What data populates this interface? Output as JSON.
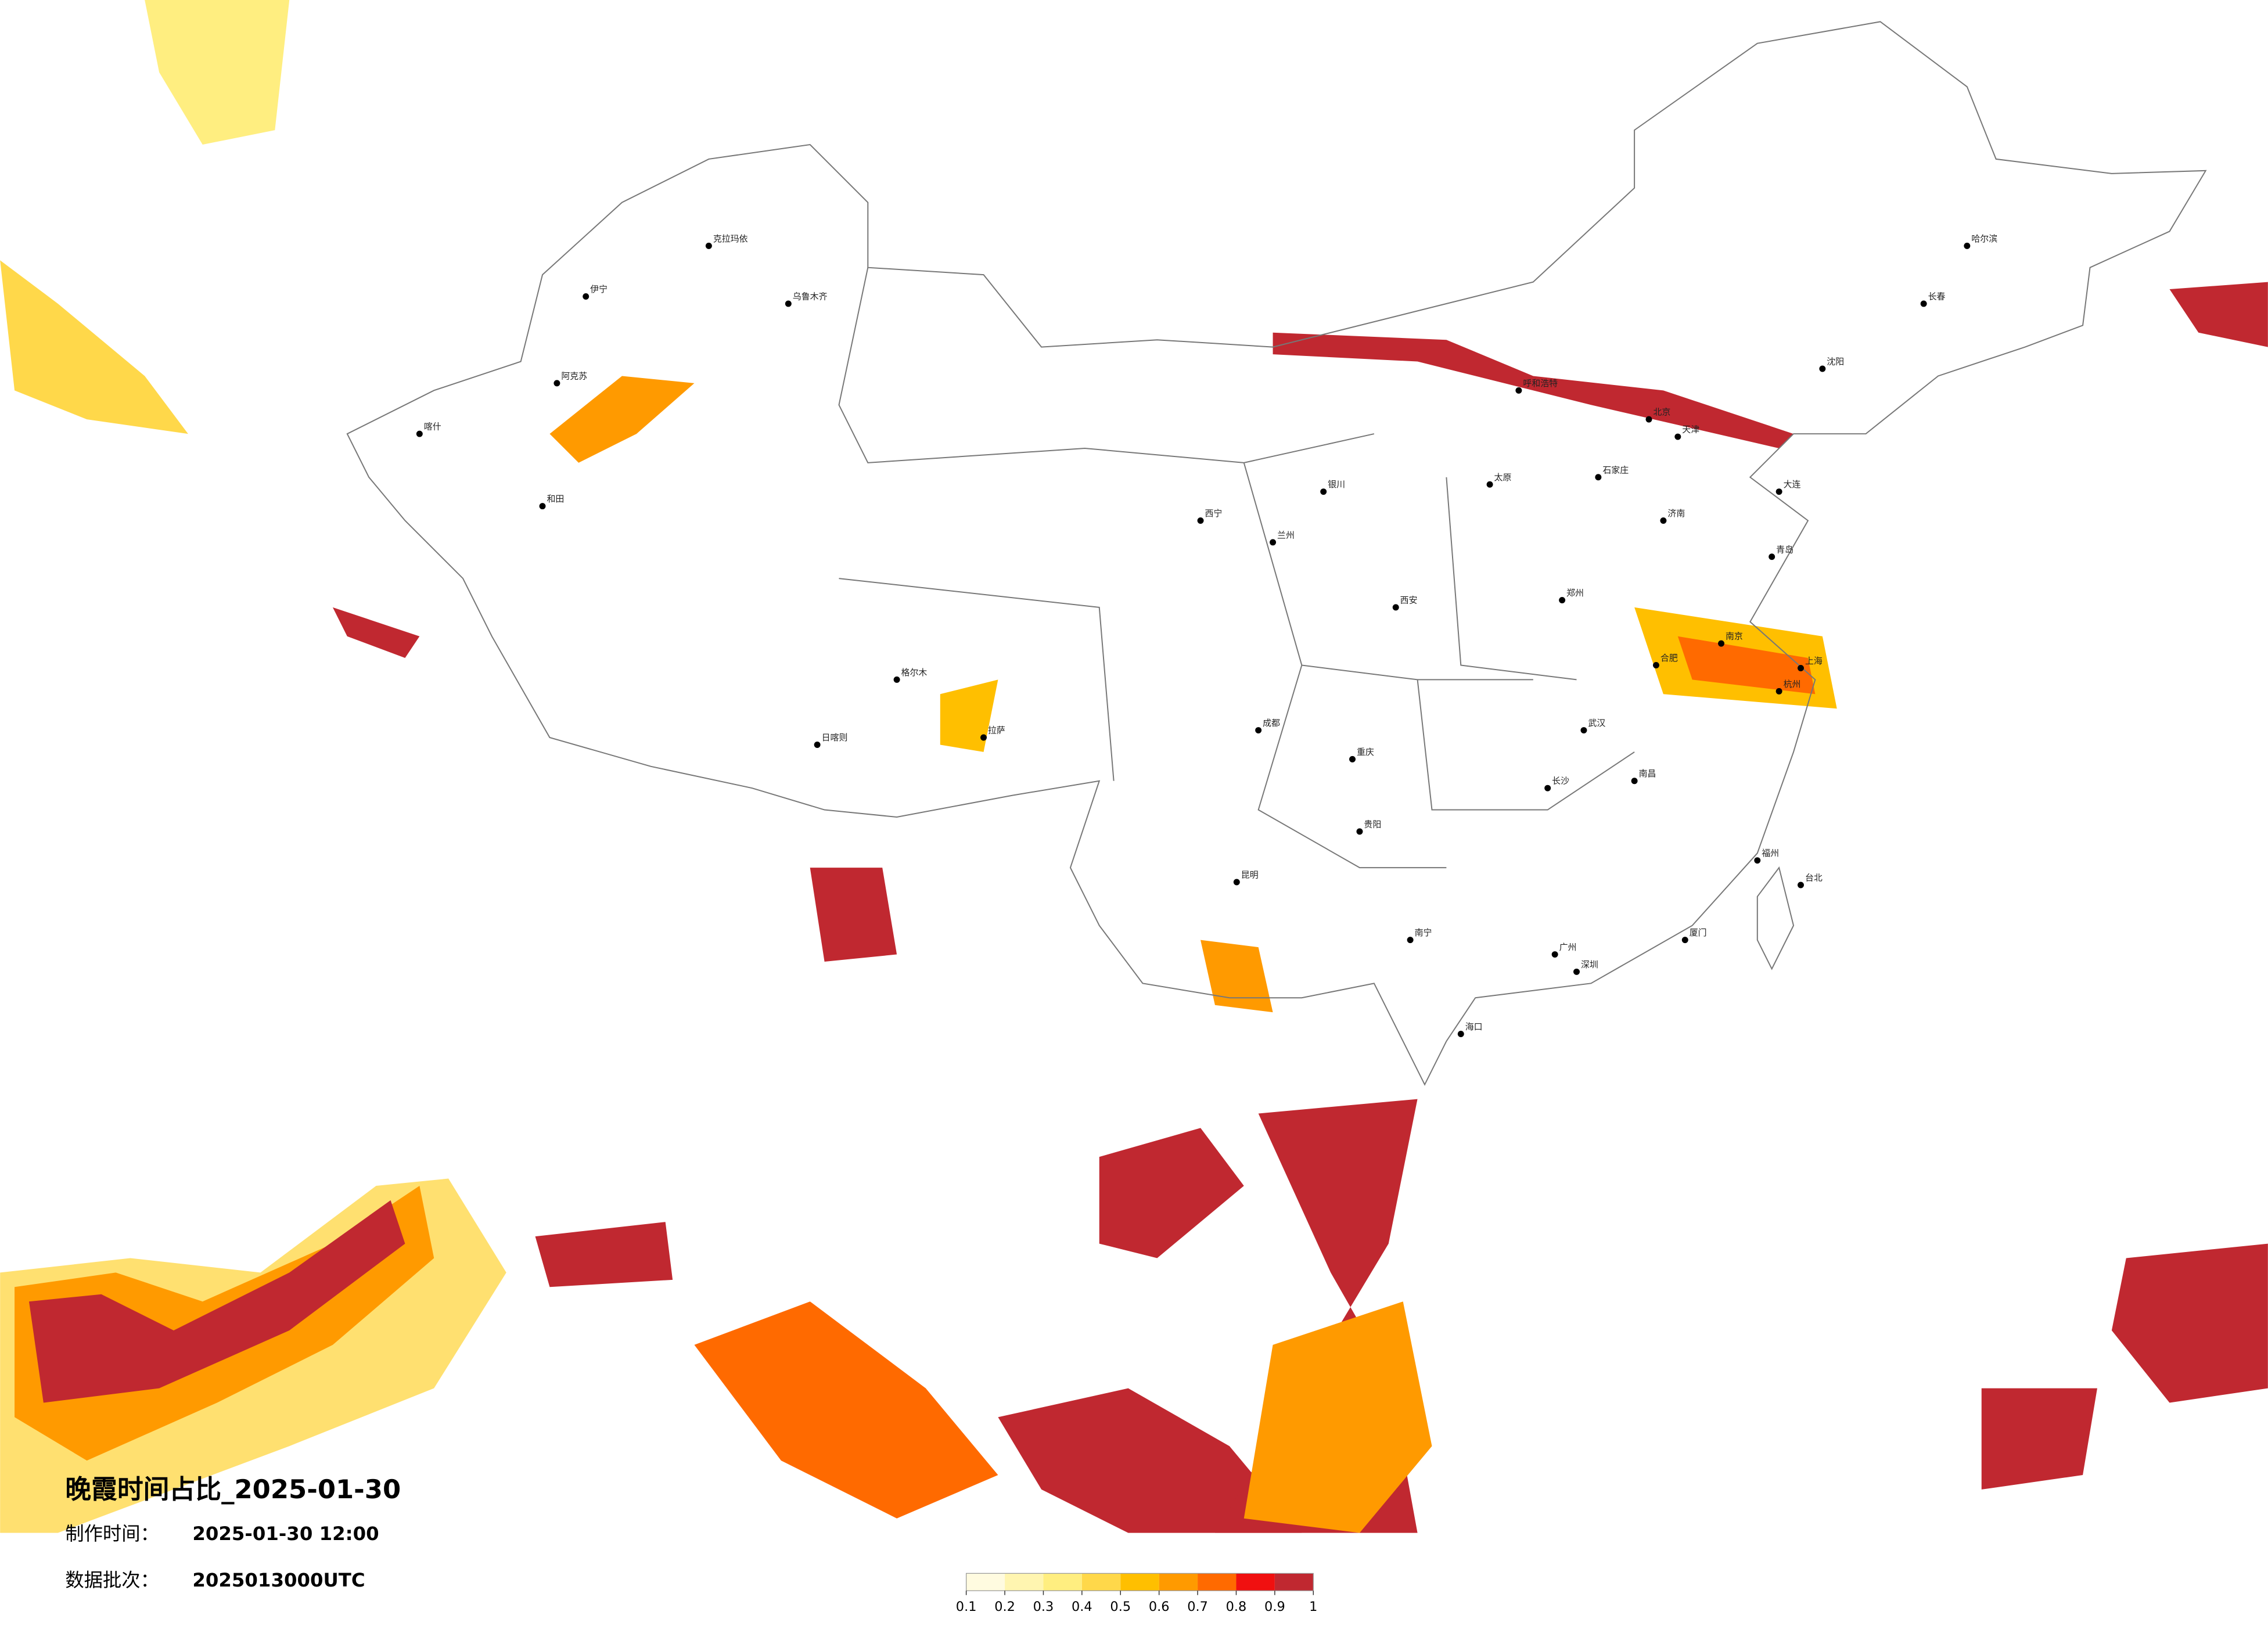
{
  "title": "晚霞时间占比_2025-01-30",
  "made_time": {
    "label": "制作时间：",
    "value": "2025-01-30 12:00"
  },
  "batch": {
    "label": "数据批次：",
    "value": "2025013000UTC"
  },
  "colorbar": {
    "colors": [
      "#fffbe0",
      "#fff5b0",
      "#ffee80",
      "#ffd84a",
      "#ffbf00",
      "#ff9a00",
      "#ff6a00",
      "#f01010",
      "#c02830"
    ],
    "ticks": [
      0.1,
      0.2,
      0.3,
      0.4,
      0.5,
      0.6,
      0.7,
      0.8,
      0.9,
      1
    ]
  },
  "cities": [
    "北京",
    "天津",
    "上海",
    "南京",
    "杭州",
    "武汉",
    "长沙",
    "广州",
    "深圳",
    "重庆",
    "成都",
    "西安",
    "郑州",
    "济南",
    "哈尔滨",
    "长春",
    "沈阳",
    "呼和浩特",
    "乌鲁木齐",
    "拉萨",
    "兰州",
    "西宁",
    "银川",
    "太原",
    "石家庄",
    "合肥",
    "福州",
    "南昌",
    "昆明",
    "贵阳",
    "南宁",
    "海口",
    "台北",
    "喀什",
    "和田",
    "阿克苏",
    "克拉玛依",
    "伊宁",
    "格尔木",
    "日喀则",
    "大连",
    "青岛",
    "厦门"
  ]
}
